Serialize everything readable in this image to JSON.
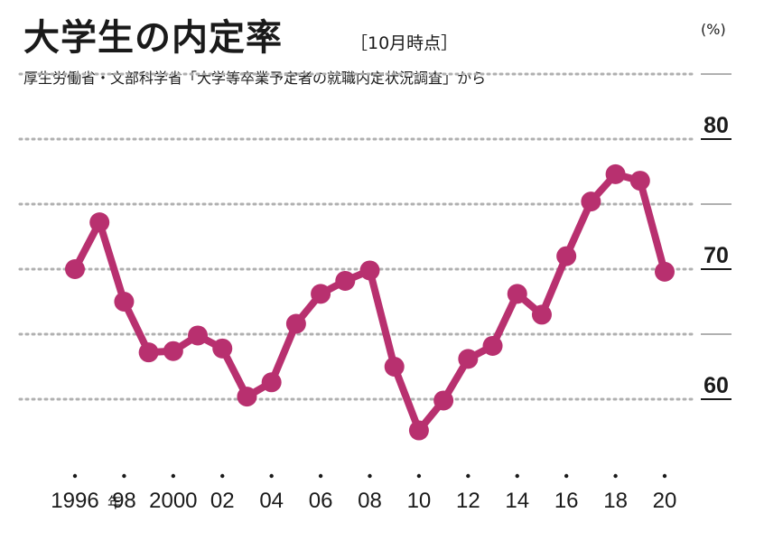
{
  "header": {
    "title": "大学生の内定率",
    "subtitle": "［10月時点］",
    "source": "厚生労働省・文部科学省「大学等卒業予定者の就職内定状況調査」から",
    "unit": "(%)"
  },
  "colors": {
    "series": "#b8306f",
    "grid": "#b0b0b0",
    "axis_rule": "#1a1a1a"
  },
  "chart_data": {
    "type": "line",
    "title": "大学生の内定率",
    "subtitle": "［10月時点］",
    "ylabel": "(%)",
    "ylim": [
      55,
      85
    ],
    "y_ticks": [
      60,
      65,
      70,
      75,
      80,
      85
    ],
    "y_tick_labels": [
      {
        "value": 80,
        "label": "80"
      },
      {
        "value": 70,
        "label": "70"
      },
      {
        "value": 60,
        "label": "60"
      }
    ],
    "x_tick_labels": [
      {
        "year": 1996,
        "label": "1996",
        "suffix": "年"
      },
      {
        "year": 1998,
        "label": "98"
      },
      {
        "year": 2000,
        "label": "2000"
      },
      {
        "year": 2002,
        "label": "02"
      },
      {
        "year": 2004,
        "label": "04"
      },
      {
        "year": 2006,
        "label": "06"
      },
      {
        "year": 2008,
        "label": "08"
      },
      {
        "year": 2010,
        "label": "10"
      },
      {
        "year": 2012,
        "label": "12"
      },
      {
        "year": 2014,
        "label": "14"
      },
      {
        "year": 2016,
        "label": "16"
      },
      {
        "year": 2018,
        "label": "18"
      },
      {
        "year": 2020,
        "label": "20"
      }
    ],
    "grid": true,
    "x": [
      1996,
      1997,
      1998,
      1999,
      2000,
      2001,
      2002,
      2003,
      2004,
      2005,
      2006,
      2007,
      2008,
      2009,
      2010,
      2011,
      2012,
      2013,
      2014,
      2015,
      2016,
      2017,
      2018,
      2019,
      2020
    ],
    "series": [
      {
        "values": [
          70.0,
          73.6,
          67.5,
          63.6,
          63.7,
          64.9,
          63.9,
          60.2,
          61.3,
          65.8,
          68.1,
          69.1,
          69.9,
          62.5,
          57.6,
          59.9,
          63.1,
          64.1,
          68.1,
          66.5,
          71.0,
          75.2,
          77.3,
          76.8,
          69.8
        ]
      }
    ]
  }
}
